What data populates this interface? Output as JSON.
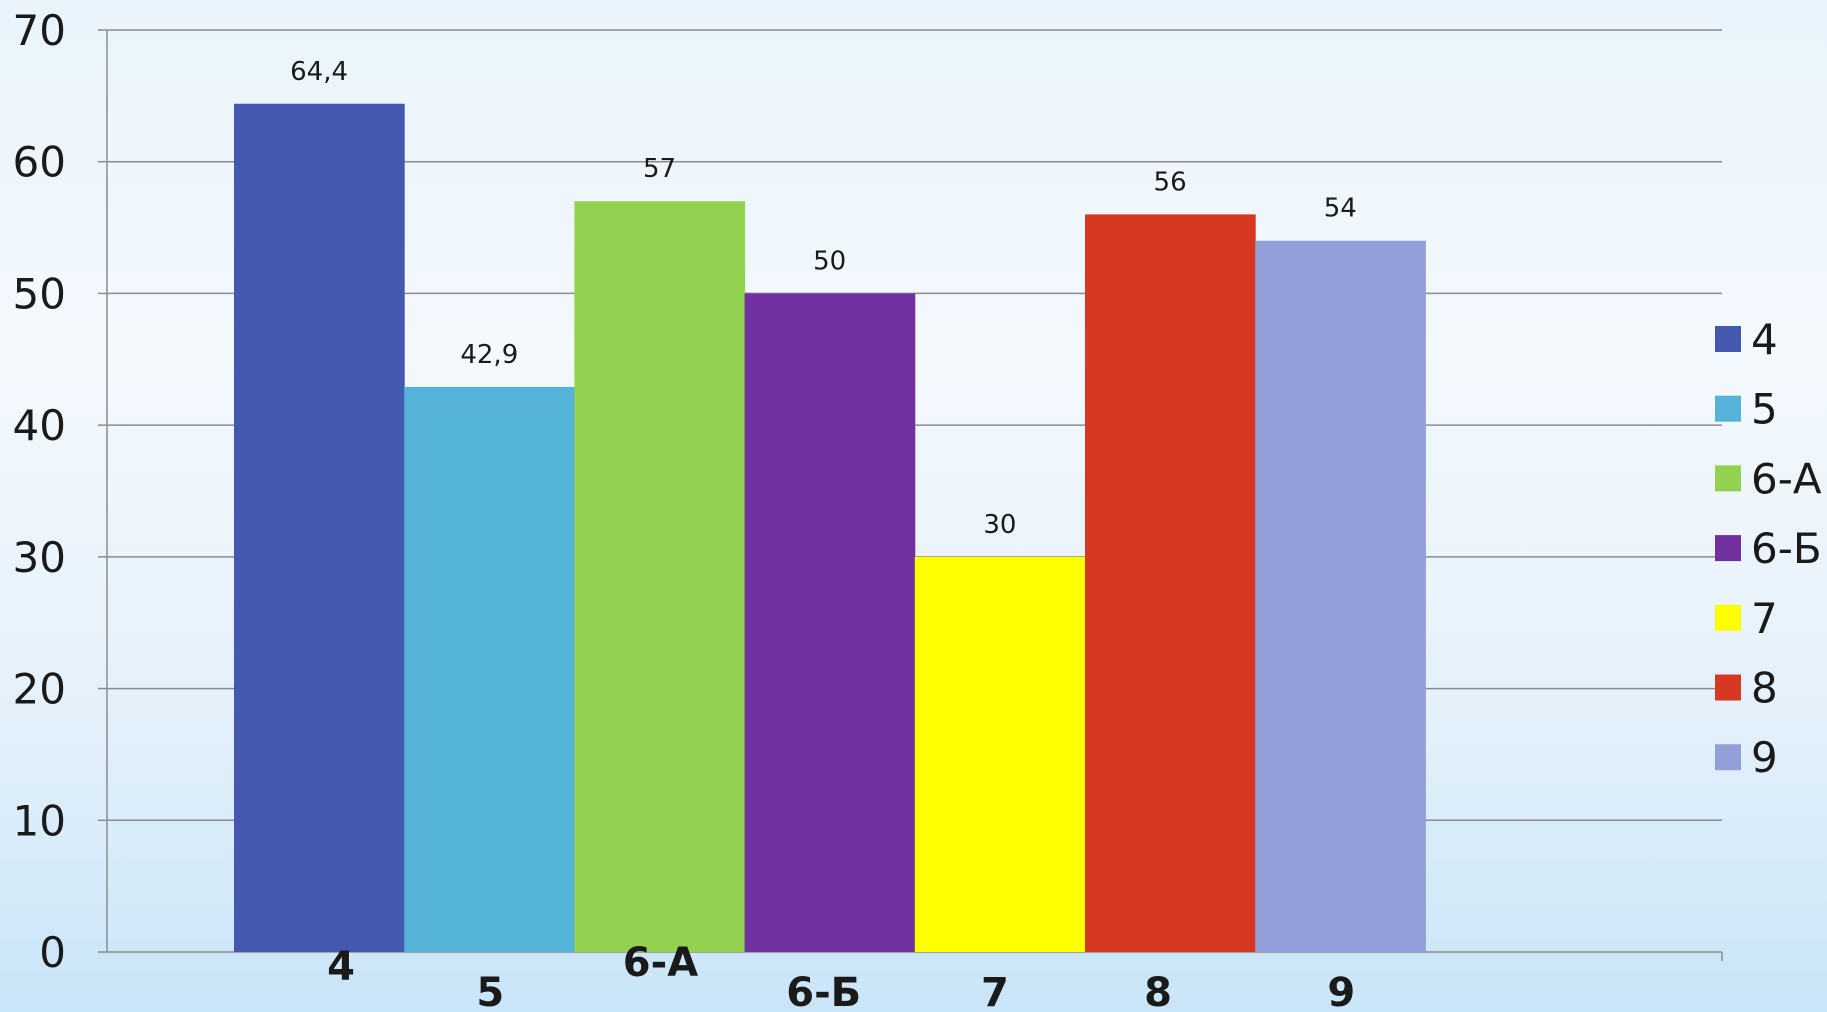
{
  "chart_data": {
    "type": "bar",
    "categories": [
      "4",
      "5",
      "6-А",
      "6-Б",
      "7",
      "8",
      "9"
    ],
    "values": [
      64.4,
      42.9,
      57,
      50,
      30,
      56,
      54
    ],
    "data_labels": [
      "64,4",
      "42,9",
      "57",
      "50",
      "30",
      "56",
      "54"
    ],
    "colors": [
      "#4358ae",
      "#55b3d9",
      "#93d150",
      "#7030a0",
      "#ffff00",
      "#d63821",
      "#929fd9"
    ],
    "ylim": [
      0,
      70
    ],
    "yticks": [
      0,
      10,
      20,
      30,
      40,
      50,
      60,
      70
    ],
    "grid": true,
    "legend_position": "right",
    "legend": [
      "4",
      "5",
      "6-А",
      "6-Б",
      "7",
      "8",
      "9"
    ]
  }
}
